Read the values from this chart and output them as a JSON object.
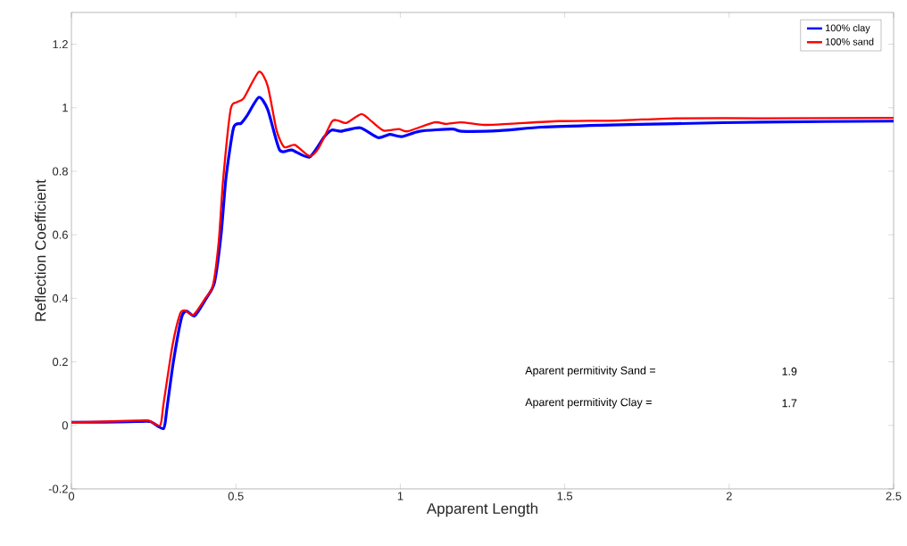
{
  "chart_data": {
    "type": "line",
    "xlabel": "Apparent Length",
    "ylabel": "Reflection Coefficient",
    "xlim": [
      0,
      2.5
    ],
    "ylim": [
      -0.2,
      1.3
    ],
    "xticks": [
      0,
      0.5,
      1,
      1.5,
      2,
      2.5
    ],
    "yticks": [
      -0.2,
      0,
      0.2,
      0.4,
      0.6,
      0.8,
      1,
      1.2
    ],
    "grid": false,
    "legend": "top right",
    "marker": "none",
    "line_style": "solid",
    "annotations": [
      "Aparent permitivity Sand =",
      "1.9",
      "Aparent permitivity Clay =",
      "1.7"
    ],
    "series": [
      {
        "name": "100% clay",
        "color": "#0000ff",
        "x": [
          0,
          0.1,
          0.2,
          0.24,
          0.28,
          0.29,
          0.31,
          0.335,
          0.35,
          0.375,
          0.41,
          0.435,
          0.455,
          0.47,
          0.493,
          0.516,
          0.534,
          0.57,
          0.597,
          0.633,
          0.67,
          0.724,
          0.769,
          0.792,
          0.82,
          0.878,
          0.932,
          0.968,
          1.004,
          1.059,
          1.158,
          1.185,
          1.303,
          1.43,
          1.61,
          1.837,
          2.1,
          2.5
        ],
        "values": [
          0.01,
          0.01,
          0.012,
          0.012,
          -0.01,
          0.05,
          0.2,
          0.34,
          0.36,
          0.345,
          0.4,
          0.45,
          0.6,
          0.78,
          0.937,
          0.951,
          0.975,
          1.033,
          0.994,
          0.867,
          0.867,
          0.845,
          0.909,
          0.93,
          0.926,
          0.937,
          0.906,
          0.916,
          0.909,
          0.926,
          0.933,
          0.926,
          0.928,
          0.939,
          0.945,
          0.95,
          0.955,
          0.958
        ]
      },
      {
        "name": "100% sand",
        "color": "#ff0000",
        "x": [
          0,
          0.1,
          0.2,
          0.235,
          0.27,
          0.28,
          0.307,
          0.33,
          0.344,
          0.371,
          0.407,
          0.43,
          0.448,
          0.461,
          0.484,
          0.502,
          0.524,
          0.57,
          0.597,
          0.624,
          0.647,
          0.679,
          0.724,
          0.751,
          0.792,
          0.81,
          0.836,
          0.882,
          0.914,
          0.95,
          0.995,
          1.022,
          1.104,
          1.139,
          1.185,
          1.257,
          1.339,
          1.484,
          1.664,
          1.837,
          2.1,
          2.5
        ],
        "values": [
          0.01,
          0.012,
          0.015,
          0.015,
          0.0,
          0.067,
          0.25,
          0.35,
          0.362,
          0.348,
          0.4,
          0.44,
          0.58,
          0.77,
          0.994,
          1.017,
          1.03,
          1.113,
          1.068,
          0.928,
          0.876,
          0.883,
          0.848,
          0.872,
          0.956,
          0.96,
          0.952,
          0.98,
          0.956,
          0.928,
          0.933,
          0.926,
          0.954,
          0.949,
          0.954,
          0.946,
          0.95,
          0.958,
          0.96,
          0.967,
          0.967,
          0.968
        ]
      }
    ]
  }
}
